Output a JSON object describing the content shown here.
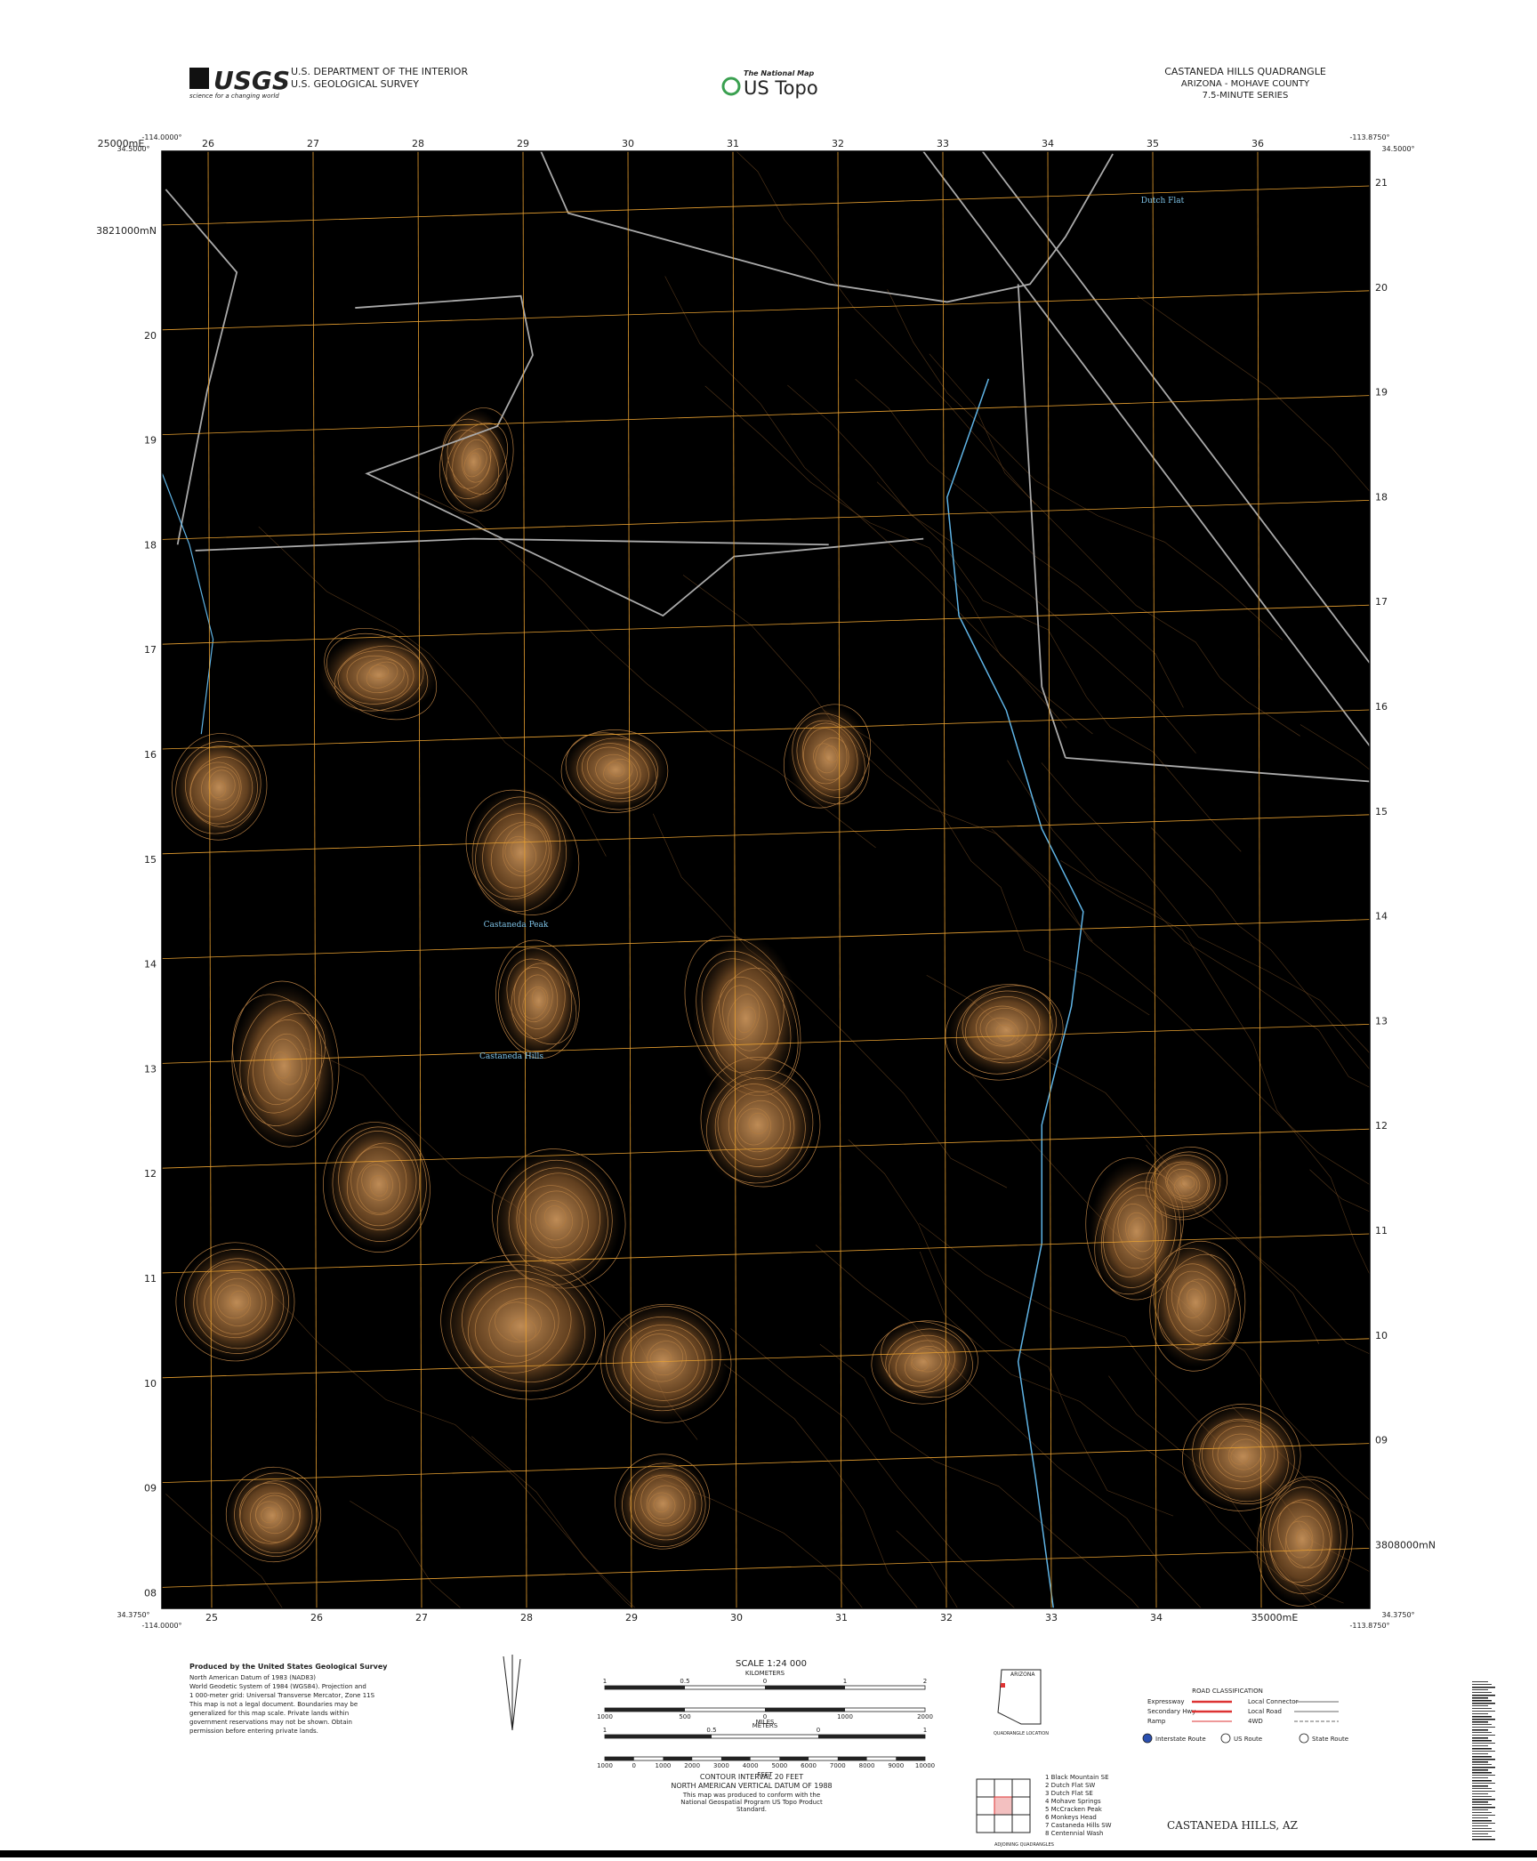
{
  "header": {
    "logo": "USGS",
    "tagline": "science for a changing world",
    "agency_1": "U.S. DEPARTMENT OF THE INTERIOR",
    "agency_2": "U.S. GEOLOGICAL SURVEY",
    "national_map": "The National Map",
    "us_topo": "US Topo",
    "quad_title": "CASTANEDA HILLS QUADRANGLE",
    "state_county": "ARIZONA - MOHAVE COUNTY",
    "series": "7.5-MINUTE SERIES"
  },
  "corners": {
    "nw_lon": "-114.0000°",
    "nw_lat": "34.5000°",
    "ne_lon": "-113.8750°",
    "ne_lat": "34.5000°",
    "sw_lat": "34.3750°",
    "sw_lon": "-114.0000°",
    "se_lat": "34.3750°",
    "se_lon": "-113.8750°"
  },
  "grid": {
    "eastings_top": [
      "25000mE",
      "26",
      "27",
      "28",
      "29",
      "30",
      "31",
      "32",
      "33",
      "34",
      "35",
      "36"
    ],
    "eastings_bottom": [
      "25",
      "26",
      "27",
      "28",
      "29",
      "30",
      "31",
      "32",
      "33",
      "34",
      "35000mE"
    ],
    "northings_left": [
      "3821000mN",
      "20",
      "19",
      "18",
      "17",
      "16",
      "15",
      "14",
      "13",
      "12",
      "11",
      "10",
      "09",
      "08"
    ],
    "northings_right": [
      "21",
      "20",
      "19",
      "18",
      "17",
      "16",
      "15",
      "14",
      "13",
      "12",
      "11",
      "10",
      "09",
      "3808000mN"
    ]
  },
  "places": [
    "Dutch Flat",
    "Castaneda Peak",
    "Castaneda Hills"
  ],
  "footer": {
    "producer": "Produced by the United States Geological Survey",
    "credits": [
      "North American Datum of 1983 (NAD83)",
      "World Geodetic System of 1984 (WGS84). Projection and",
      "1 000-meter grid: Universal Transverse Mercator, Zone 11S",
      "This map is not a legal document. Boundaries may be",
      "generalized for this map scale. Private lands within",
      "government reservations may not be shown. Obtain",
      "permission before entering private lands."
    ],
    "scale": "SCALE 1:24 000",
    "km_unit": "KILOMETERS",
    "m_unit": "METERS",
    "mi_unit": "MILES",
    "ft_unit": "FEET",
    "km_marks": [
      "1",
      "0.5",
      "0",
      "1",
      "2"
    ],
    "m_marks": [
      "1000",
      "500",
      "0",
      "1000",
      "2000"
    ],
    "mi_marks": [
      "1",
      "0.5",
      "0",
      "1"
    ],
    "ft_marks": [
      "1000",
      "0",
      "1000",
      "2000",
      "3000",
      "4000",
      "5000",
      "6000",
      "7000",
      "8000",
      "9000",
      "10000"
    ],
    "contour": "CONTOUR INTERVAL 20 FEET",
    "datum": "NORTH AMERICAN VERTICAL DATUM OF 1988",
    "standard": "This map was produced to conform with the National Geospatial Program US Topo Product Standard.",
    "inset_state": "ARIZONA",
    "inset_caption": "QUADRANGLE LOCATION",
    "adjoining_caption": "ADJOINING QUADRANGLES",
    "adjoining": [
      "1 Black Mountain SE",
      "2 Dutch Flat SW",
      "3 Dutch Flat SE",
      "4 Mohave Springs",
      "5 McCracken Peak",
      "6 Monkeys Head",
      "7 Castaneda Hills SW",
      "8 Centennial Wash"
    ],
    "road_classification": "ROAD CLASSIFICATION",
    "roads_left": [
      "Expressway",
      "Secondary Hwy",
      "Ramp"
    ],
    "roads_right": [
      "Local Connector",
      "Local Road",
      "4WD"
    ],
    "routes": [
      "Interstate Route",
      "US Route",
      "State Route"
    ],
    "quad_name": "CASTANEDA HILLS, AZ"
  }
}
